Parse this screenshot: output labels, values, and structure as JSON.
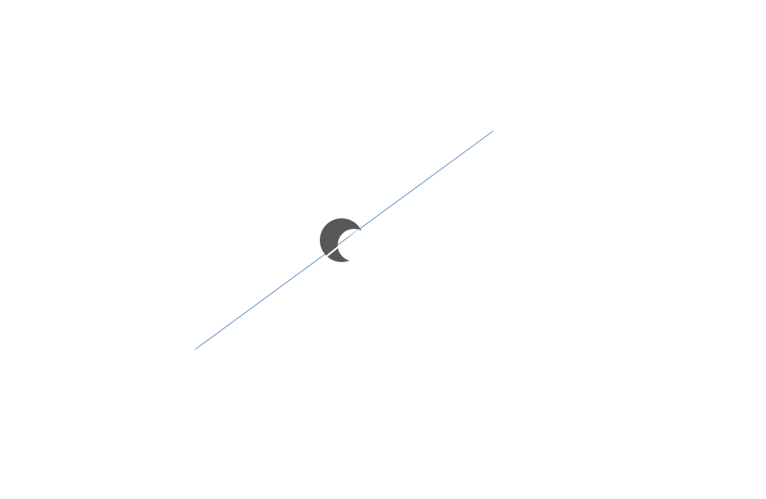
{
  "canvas": {
    "background": "#ffffff"
  },
  "diagonal_line": {
    "color": "#5b8fc4"
  },
  "loading_spinner": {
    "icon": "crescent-spinner-icon",
    "color": "#585858"
  }
}
